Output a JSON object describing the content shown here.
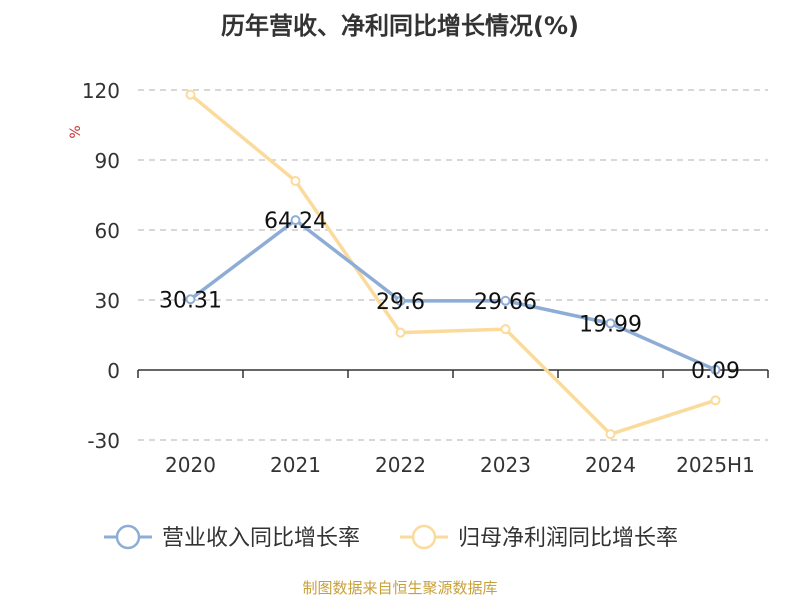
{
  "chart_data": {
    "type": "line",
    "title": "历年营收、净利同比增长情况(%)",
    "ylabel": "%",
    "ylim": [
      -30,
      120
    ],
    "yticks": [
      -30,
      0,
      30,
      60,
      90,
      120
    ],
    "categories": [
      "2020",
      "2021",
      "2022",
      "2023",
      "2024",
      "2025H1"
    ],
    "grid": true,
    "legend_position": "bottom",
    "series": [
      {
        "name": "营业收入同比增长率",
        "values": [
          30.31,
          64.24,
          29.6,
          29.66,
          19.99,
          0.09
        ],
        "labels": [
          "30.31",
          "64.24",
          "29.6",
          "29.66",
          "19.99",
          "0.09"
        ],
        "color": "#8eadd6"
      },
      {
        "name": "归母净利润同比增长率",
        "values": [
          118,
          81,
          16,
          17.5,
          -27.5,
          -13
        ],
        "color": "#fbdb9c"
      }
    ],
    "source": "制图数据来自恒生聚源数据库"
  },
  "colors": {
    "title": "#333333",
    "axis": "#333333",
    "grid": "#cccccc",
    "ylabel": "#c23531",
    "source": "#c8a13a"
  }
}
